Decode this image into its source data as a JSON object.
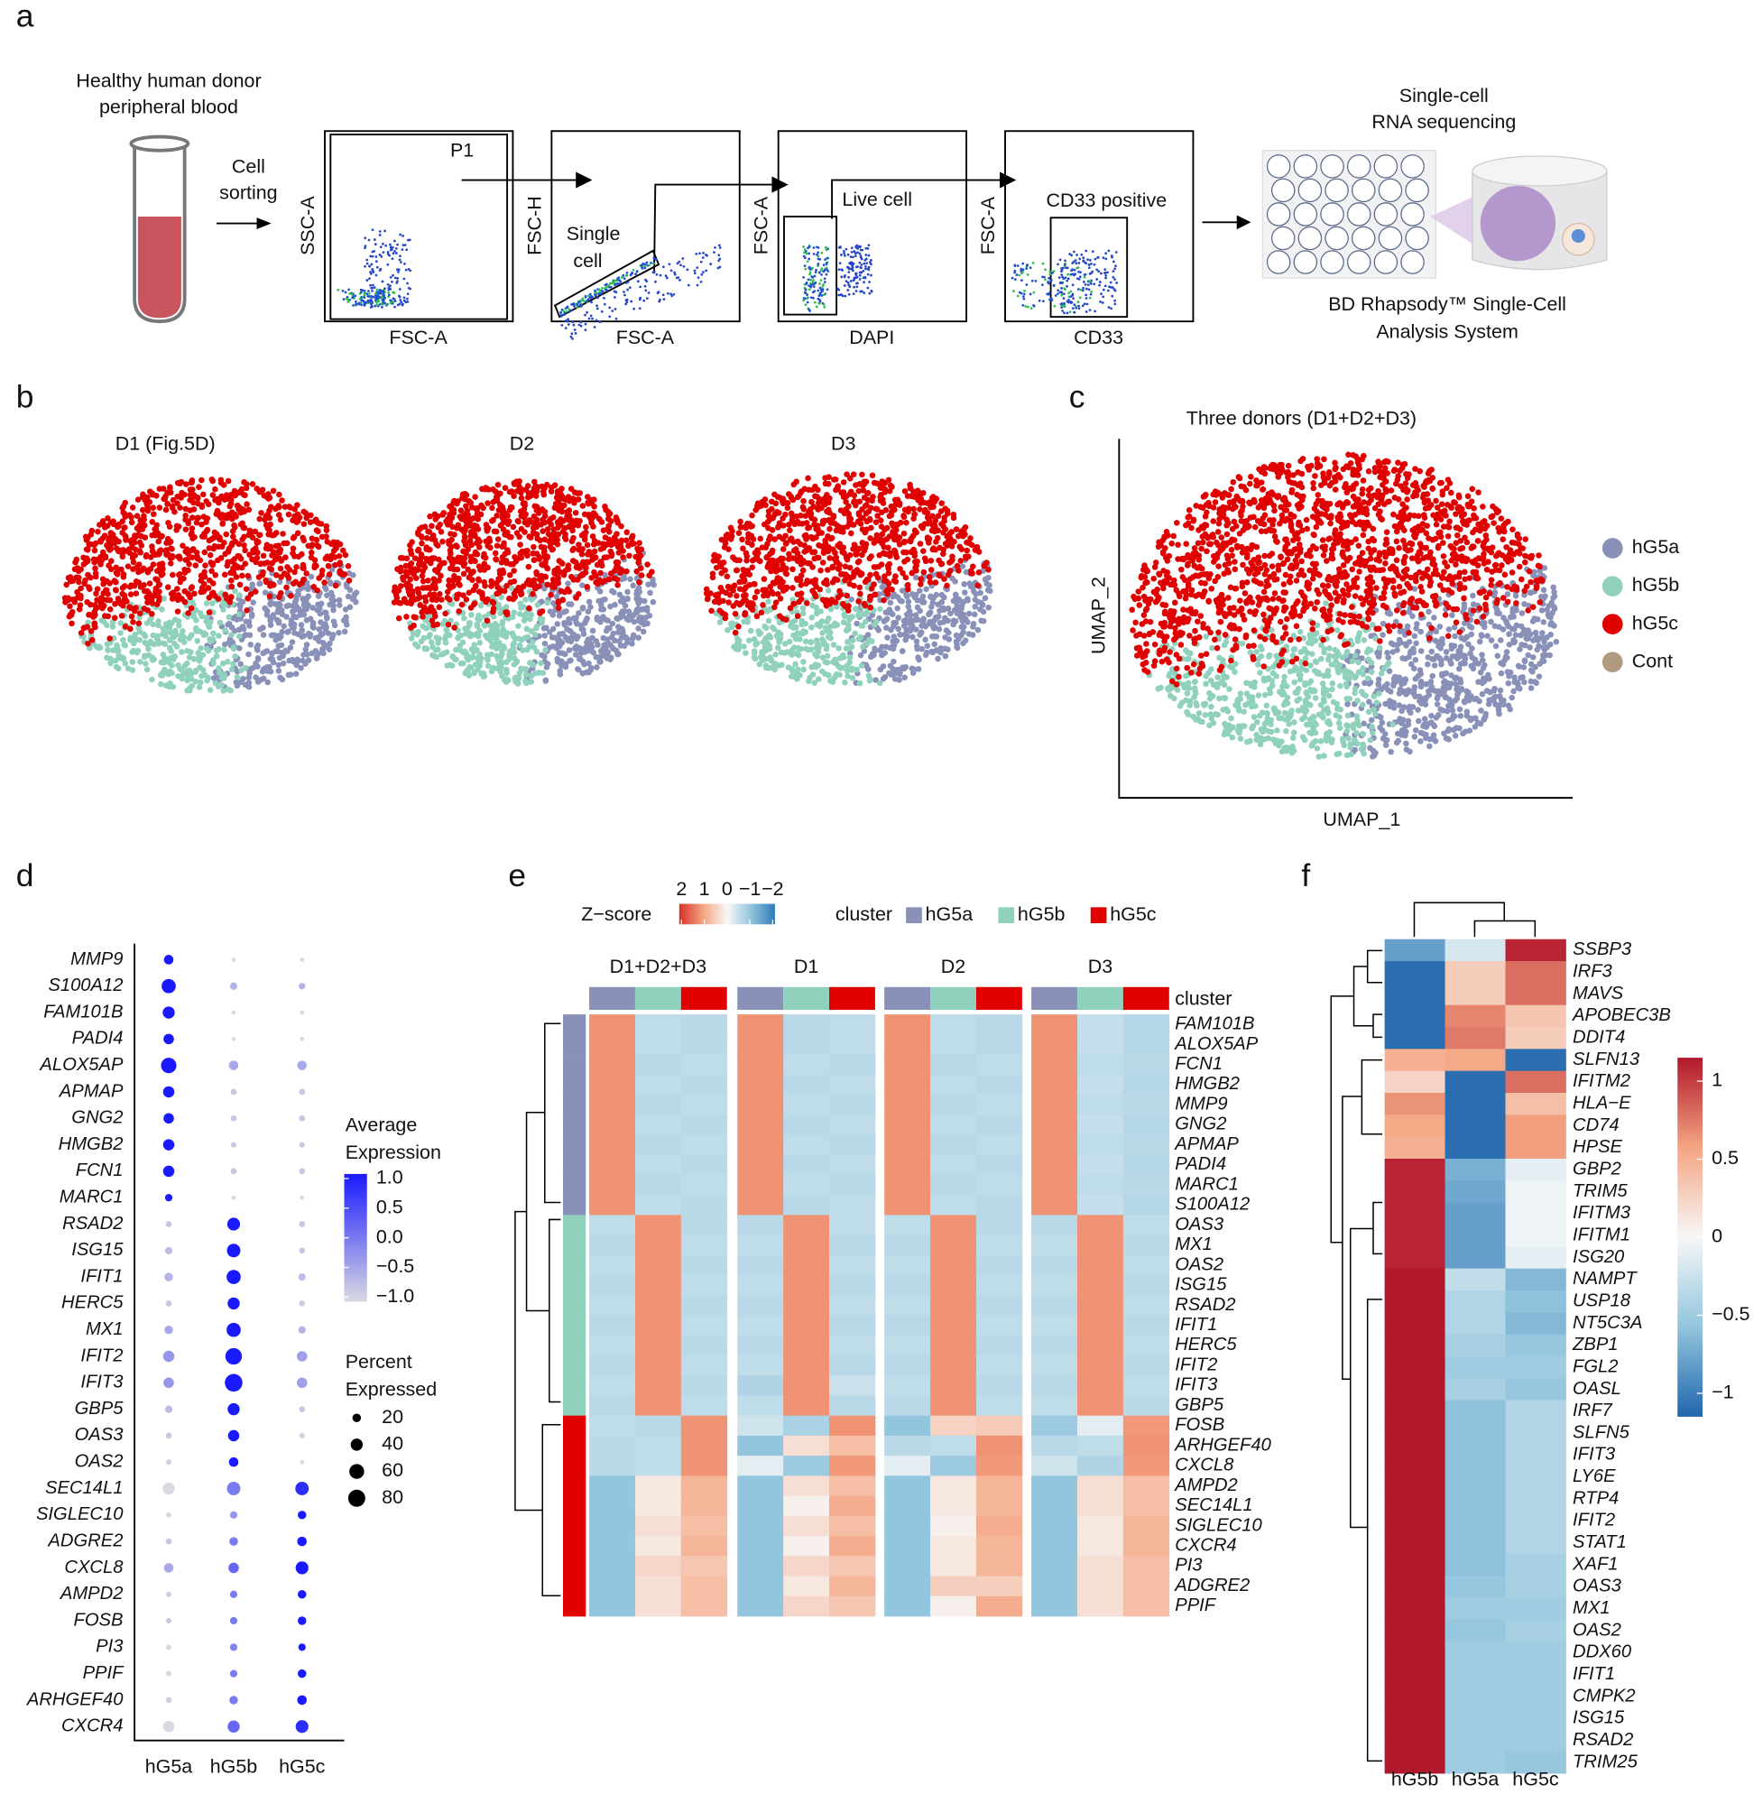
{
  "figure": {
    "panel_labels": [
      "a",
      "b",
      "c",
      "d",
      "e",
      "f"
    ]
  },
  "workflow": {
    "source": [
      "Healthy human donor",
      "peripheral blood"
    ],
    "sorting": [
      "Cell",
      "sorting"
    ],
    "gates": [
      {
        "y_label": "SSC-A",
        "x_label": "FSC-A",
        "gate": [
          "P1"
        ]
      },
      {
        "y_label": "FSC-H",
        "x_label": "FSC-A",
        "gate": [
          "Single",
          "cell"
        ]
      },
      {
        "y_label": "FSC-A",
        "x_label": "DAPI",
        "gate": [
          "Live cell"
        ]
      },
      {
        "y_label": "FSC-A",
        "x_label": "CD33",
        "gate": [
          "CD33 positive"
        ]
      }
    ],
    "sequencing": [
      "Single-cell",
      "RNA sequencing"
    ],
    "system": [
      "BD Rhapsody™ Single-Cell",
      "Analysis System"
    ]
  },
  "chart_data": [
    {
      "type": "embedding",
      "titles": [
        "D1 (Fig.5D)",
        "D2",
        "D3"
      ]
    },
    {
      "type": "embedding",
      "title": "Three donors (D1+D2+D3)",
      "x_label": "UMAP_1",
      "y_label": "UMAP_2",
      "series": [
        {
          "name": "hG5a",
          "color": "#8a91b8"
        },
        {
          "name": "hG5b",
          "color": "#8fd1bd"
        },
        {
          "name": "hG5c",
          "color": "#e00000"
        },
        {
          "name": "Cont",
          "color": "#b09a80"
        }
      ]
    },
    {
      "type": "dot",
      "genes": [
        "MMP9",
        "S100A12",
        "FAM101B",
        "PADI4",
        "ALOX5AP",
        "APMAP",
        "GNG2",
        "HMGB2",
        "FCN1",
        "MARC1",
        "RSAD2",
        "ISG15",
        "IFIT1",
        "HERC5",
        "MX1",
        "IFIT2",
        "IFIT3",
        "GBP5",
        "OAS3",
        "OAS2",
        "SEC14L1",
        "SIGLEC10",
        "ADGRE2",
        "CXCL8",
        "AMPD2",
        "FOSB",
        "PI3",
        "PPIF",
        "ARHGEF40",
        "CXCR4"
      ],
      "categories": [
        "hG5a",
        "hG5b",
        "hG5c"
      ],
      "average_expression": [
        [
          1,
          -1,
          -1
        ],
        [
          1,
          -0.6,
          -0.6
        ],
        [
          1,
          -1,
          -1
        ],
        [
          1,
          -1,
          -1
        ],
        [
          1,
          -0.5,
          -0.5
        ],
        [
          1,
          -0.8,
          -0.8
        ],
        [
          1,
          -0.8,
          -0.8
        ],
        [
          1,
          -0.8,
          -0.8
        ],
        [
          1,
          -0.8,
          -0.8
        ],
        [
          1,
          -1,
          -1
        ],
        [
          -0.8,
          1,
          -0.8
        ],
        [
          -0.7,
          1,
          -0.8
        ],
        [
          -0.6,
          1,
          -0.7
        ],
        [
          -0.8,
          1,
          -0.9
        ],
        [
          -0.5,
          1,
          -0.6
        ],
        [
          -0.3,
          1,
          -0.4
        ],
        [
          -0.3,
          1,
          -0.4
        ],
        [
          -0.7,
          1,
          -0.8
        ],
        [
          -0.8,
          1,
          -0.9
        ],
        [
          -0.9,
          1,
          -1
        ],
        [
          -1,
          0,
          0.8
        ],
        [
          -1,
          -0.3,
          1
        ],
        [
          -0.8,
          0,
          1
        ],
        [
          -0.5,
          0.2,
          1
        ],
        [
          -0.9,
          0,
          1
        ],
        [
          -0.8,
          0,
          1
        ],
        [
          -1,
          -0.1,
          1
        ],
        [
          -1,
          0,
          1
        ],
        [
          -0.9,
          0,
          1
        ],
        [
          -1,
          0.2,
          0.8
        ]
      ],
      "percent_expressed": [
        [
          25,
          5,
          5
        ],
        [
          55,
          15,
          12
        ],
        [
          40,
          5,
          5
        ],
        [
          30,
          5,
          5
        ],
        [
          65,
          25,
          25
        ],
        [
          35,
          10,
          10
        ],
        [
          30,
          10,
          10
        ],
        [
          35,
          8,
          8
        ],
        [
          35,
          10,
          10
        ],
        [
          15,
          5,
          5
        ],
        [
          10,
          45,
          10
        ],
        [
          15,
          50,
          10
        ],
        [
          20,
          55,
          15
        ],
        [
          10,
          40,
          10
        ],
        [
          20,
          55,
          15
        ],
        [
          35,
          75,
          30
        ],
        [
          30,
          85,
          30
        ],
        [
          15,
          40,
          10
        ],
        [
          10,
          35,
          8
        ],
        [
          8,
          25,
          5
        ],
        [
          40,
          50,
          50
        ],
        [
          8,
          15,
          20
        ],
        [
          10,
          20,
          25
        ],
        [
          25,
          30,
          45
        ],
        [
          8,
          15,
          20
        ],
        [
          8,
          15,
          20
        ],
        [
          8,
          15,
          15
        ],
        [
          8,
          15,
          20
        ],
        [
          10,
          20,
          25
        ],
        [
          35,
          40,
          45
        ]
      ],
      "color_title": [
        "Average",
        "Expression"
      ],
      "color_lim": [
        -1,
        1
      ],
      "color_ticks": [
        {
          "value": 1,
          "label": "1.0"
        },
        0.5,
        {
          "value": 0,
          "label": "0.0"
        },
        {
          "value": -0.5,
          "label": "−0.5"
        },
        {
          "value": -1,
          "label": "−1.0"
        }
      ],
      "colormap": [
        "#d9d9e2",
        "#1a1aff"
      ],
      "size_title": [
        "Percent",
        "Expressed"
      ],
      "size_ticks": [
        20,
        40,
        60,
        80
      ]
    },
    {
      "type": "heatmap",
      "colorbar_title": "Z−score",
      "zlim": [
        -2,
        2
      ],
      "zticks": [
        2,
        1,
        0,
        {
          "value": -1,
          "label": "−1"
        },
        {
          "value": -2,
          "label": "−2"
        }
      ],
      "colormap": [
        "#2c7bb6",
        "#92c5de",
        "#f7f7f7",
        "#f4a582",
        "#d73027"
      ],
      "legend_title": "cluster",
      "clusters": [
        {
          "name": "hG5a",
          "color": "#8a91b8"
        },
        {
          "name": "hG5b",
          "color": "#8fd1bd"
        },
        {
          "name": "hG5c",
          "color": "#e00000"
        }
      ],
      "annotation_title": "cluster",
      "groups": [
        "D1+D2+D3",
        "D1",
        "D2",
        "D3"
      ],
      "genes": [
        "FAM101B",
        "ALOX5AP",
        "FCN1",
        "HMGB2",
        "MMP9",
        "GNG2",
        "APMAP",
        "PADI4",
        "MARC1",
        "S100A12",
        "OAS3",
        "MX1",
        "OAS2",
        "ISG15",
        "RSAD2",
        "IFIT1",
        "HERC5",
        "IFIT2",
        "IFIT3",
        "GBP5",
        "FOSB",
        "ARHGEF40",
        "CXCL8",
        "AMPD2",
        "SEC14L1",
        "SIGLEC10",
        "CXCR4",
        "PI3",
        "ADGRE2",
        "PPIF"
      ],
      "values": [
        [
          1.15,
          -0.55,
          -0.6,
          1.15,
          -0.6,
          -0.55,
          1.15,
          -0.55,
          -0.6,
          1.15,
          -0.5,
          -0.65
        ],
        [
          1.15,
          -0.55,
          -0.6,
          1.15,
          -0.6,
          -0.55,
          1.15,
          -0.55,
          -0.6,
          1.15,
          -0.5,
          -0.65
        ],
        [
          1.15,
          -0.6,
          -0.55,
          1.15,
          -0.55,
          -0.6,
          1.15,
          -0.6,
          -0.55,
          1.15,
          -0.55,
          -0.6
        ],
        [
          1.15,
          -0.55,
          -0.6,
          1.15,
          -0.6,
          -0.55,
          1.15,
          -0.55,
          -0.6,
          1.15,
          -0.5,
          -0.65
        ],
        [
          1.15,
          -0.6,
          -0.55,
          1.15,
          -0.55,
          -0.6,
          1.15,
          -0.6,
          -0.55,
          1.15,
          -0.55,
          -0.6
        ],
        [
          1.15,
          -0.55,
          -0.6,
          1.15,
          -0.6,
          -0.55,
          1.15,
          -0.55,
          -0.6,
          1.15,
          -0.5,
          -0.65
        ],
        [
          1.15,
          -0.6,
          -0.55,
          1.15,
          -0.55,
          -0.6,
          1.15,
          -0.6,
          -0.55,
          1.15,
          -0.55,
          -0.6
        ],
        [
          1.15,
          -0.55,
          -0.6,
          1.15,
          -0.6,
          -0.55,
          1.15,
          -0.55,
          -0.6,
          1.15,
          -0.5,
          -0.65
        ],
        [
          1.15,
          -0.6,
          -0.55,
          1.15,
          -0.55,
          -0.6,
          1.15,
          -0.6,
          -0.55,
          1.15,
          -0.55,
          -0.6
        ],
        [
          1.15,
          -0.55,
          -0.6,
          1.15,
          -0.6,
          -0.55,
          1.15,
          -0.55,
          -0.6,
          1.15,
          -0.5,
          -0.65
        ],
        [
          -0.55,
          1.15,
          -0.6,
          -0.6,
          1.15,
          -0.55,
          -0.55,
          1.15,
          -0.6,
          -0.6,
          1.15,
          -0.55
        ],
        [
          -0.6,
          1.15,
          -0.55,
          -0.55,
          1.15,
          -0.6,
          -0.6,
          1.15,
          -0.55,
          -0.55,
          1.15,
          -0.6
        ],
        [
          -0.55,
          1.15,
          -0.6,
          -0.6,
          1.15,
          -0.55,
          -0.55,
          1.15,
          -0.6,
          -0.6,
          1.15,
          -0.55
        ],
        [
          -0.6,
          1.15,
          -0.55,
          -0.55,
          1.15,
          -0.6,
          -0.6,
          1.15,
          -0.55,
          -0.55,
          1.15,
          -0.6
        ],
        [
          -0.55,
          1.15,
          -0.6,
          -0.6,
          1.15,
          -0.55,
          -0.55,
          1.15,
          -0.6,
          -0.6,
          1.15,
          -0.55
        ],
        [
          -0.6,
          1.15,
          -0.55,
          -0.55,
          1.15,
          -0.6,
          -0.6,
          1.15,
          -0.55,
          -0.55,
          1.15,
          -0.6
        ],
        [
          -0.55,
          1.15,
          -0.6,
          -0.6,
          1.15,
          -0.55,
          -0.55,
          1.15,
          -0.6,
          -0.6,
          1.15,
          -0.55
        ],
        [
          -0.6,
          1.15,
          -0.55,
          -0.55,
          1.15,
          -0.6,
          -0.6,
          1.15,
          -0.55,
          -0.55,
          1.15,
          -0.6
        ],
        [
          -0.55,
          1.15,
          -0.6,
          -0.7,
          1.15,
          -0.45,
          -0.55,
          1.15,
          -0.6,
          -0.6,
          1.15,
          -0.55
        ],
        [
          -0.6,
          1.15,
          -0.55,
          -0.55,
          1.15,
          -0.6,
          -0.6,
          1.15,
          -0.55,
          -0.55,
          1.15,
          -0.6
        ],
        [
          -0.55,
          -0.6,
          1.15,
          -0.4,
          -0.75,
          1.15,
          -1,
          0.45,
          0.55,
          -0.9,
          -0.2,
          1.1
        ],
        [
          -0.6,
          -0.55,
          1.15,
          -1,
          0.3,
          0.7,
          -0.6,
          -0.55,
          1.15,
          -0.6,
          -0.55,
          1.15
        ],
        [
          -0.6,
          -0.55,
          1.15,
          -0.2,
          -0.9,
          1.1,
          -0.2,
          -0.9,
          1.1,
          -0.4,
          -0.7,
          1.1
        ],
        [
          -1,
          0.2,
          0.8,
          -1,
          0.3,
          0.7,
          -1,
          0.2,
          0.8,
          -1,
          0.3,
          0.7
        ],
        [
          -1,
          0.2,
          0.8,
          -1,
          0.1,
          0.9,
          -1,
          0.2,
          0.8,
          -1,
          0.3,
          0.7
        ],
        [
          -1,
          0.3,
          0.7,
          -1,
          0.3,
          0.7,
          -1,
          0.1,
          0.9,
          -1,
          0.2,
          0.8
        ],
        [
          -1,
          0.2,
          0.8,
          -1,
          0.1,
          0.9,
          -1,
          0.2,
          0.8,
          -1,
          0.2,
          0.8
        ],
        [
          -1,
          0.4,
          0.6,
          -1,
          0.4,
          0.6,
          -1,
          0.2,
          0.8,
          -1,
          0.3,
          0.7
        ],
        [
          -1,
          0.3,
          0.7,
          -1,
          0.2,
          0.8,
          -1,
          0.5,
          0.5,
          -1,
          0.3,
          0.7
        ],
        [
          -1,
          0.3,
          0.7,
          -1,
          0.4,
          0.6,
          -1,
          0.1,
          0.9,
          -1,
          0.3,
          0.7
        ]
      ]
    },
    {
      "type": "heatmap",
      "columns": [
        "hG5b",
        "hG5a",
        "hG5c"
      ],
      "genes": [
        "SSBP3",
        "IRF3",
        "MAVS",
        "APOBEC3B",
        "DDIT4",
        "SLFN13",
        "IFITM2",
        "HLA−E",
        "CD74",
        "HPSE",
        "GBP2",
        "TRIM5",
        "IFITM3",
        "IFITM1",
        "ISG20",
        "NAMPT",
        "USP18",
        "NT5C3A",
        "ZBP1",
        "FGL2",
        "OASL",
        "IRF7",
        "SLFN5",
        "IFIT3",
        "LY6E",
        "RTP4",
        "IFIT2",
        "STAT1",
        "XAF1",
        "OAS3",
        "MX1",
        "OAS2",
        "DDX60",
        "IFIT1",
        "CMPK2",
        "ISG15",
        "RSAD2",
        "TRIM25"
      ],
      "values": [
        [
          -0.8,
          -0.2,
          1.1
        ],
        [
          -1.1,
          0.3,
          0.8
        ],
        [
          -1.1,
          0.3,
          0.8
        ],
        [
          -1.1,
          0.7,
          0.35
        ],
        [
          -1.1,
          0.75,
          0.3
        ],
        [
          0.5,
          0.55,
          -1.1
        ],
        [
          0.25,
          -1.1,
          0.8
        ],
        [
          0.65,
          -1.1,
          0.4
        ],
        [
          0.55,
          -1.1,
          0.6
        ],
        [
          0.5,
          -1.1,
          0.6
        ],
        [
          1.1,
          -0.7,
          -0.1
        ],
        [
          1.1,
          -0.75,
          -0.05
        ],
        [
          1.1,
          -0.8,
          -0.05
        ],
        [
          1.1,
          -0.8,
          -0.05
        ],
        [
          1.1,
          -0.8,
          -0.1
        ],
        [
          1.15,
          -0.3,
          -0.65
        ],
        [
          1.15,
          -0.4,
          -0.6
        ],
        [
          1.15,
          -0.4,
          -0.65
        ],
        [
          1.15,
          -0.45,
          -0.55
        ],
        [
          1.15,
          -0.5,
          -0.5
        ],
        [
          1.15,
          -0.45,
          -0.55
        ],
        [
          1.15,
          -0.6,
          -0.4
        ],
        [
          1.15,
          -0.6,
          -0.4
        ],
        [
          1.15,
          -0.6,
          -0.4
        ],
        [
          1.15,
          -0.6,
          -0.4
        ],
        [
          1.15,
          -0.6,
          -0.4
        ],
        [
          1.15,
          -0.6,
          -0.4
        ],
        [
          1.15,
          -0.6,
          -0.4
        ],
        [
          1.15,
          -0.6,
          -0.45
        ],
        [
          1.15,
          -0.55,
          -0.45
        ],
        [
          1.15,
          -0.5,
          -0.5
        ],
        [
          1.15,
          -0.55,
          -0.45
        ],
        [
          1.15,
          -0.5,
          -0.5
        ],
        [
          1.15,
          -0.5,
          -0.5
        ],
        [
          1.15,
          -0.5,
          -0.5
        ],
        [
          1.15,
          -0.5,
          -0.5
        ],
        [
          1.15,
          -0.5,
          -0.5
        ],
        [
          1.15,
          -0.5,
          -0.55
        ]
      ],
      "zlim": [
        -1.15,
        1.15
      ],
      "zticks": [
        1,
        0.5,
        0,
        {
          "value": -0.5,
          "label": "−0.5"
        },
        {
          "value": -1,
          "label": "−1"
        }
      ],
      "colormap": [
        "#2166ac",
        "#92c5de",
        "#f7f7f7",
        "#f4a582",
        "#b2182b"
      ]
    }
  ]
}
